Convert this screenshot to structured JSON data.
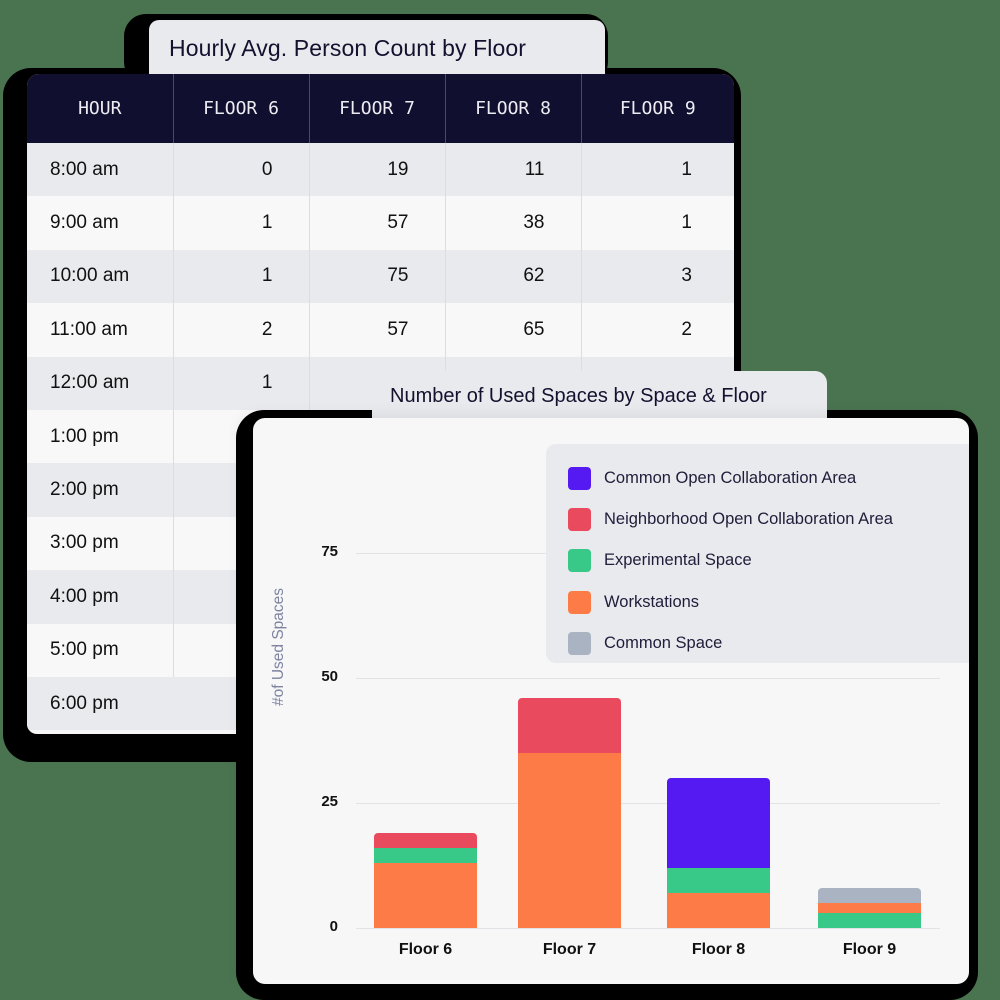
{
  "table_card": {
    "title": "Hourly Avg. Person Count by Floor",
    "columns": [
      "HOUR",
      "FLOOR 6",
      "FLOOR 7",
      "FLOOR 8",
      "FLOOR 9"
    ],
    "rows": [
      [
        "8:00 am",
        "0",
        "19",
        "11",
        "1"
      ],
      [
        "9:00 am",
        "1",
        "57",
        "38",
        "1"
      ],
      [
        "10:00 am",
        "1",
        "75",
        "62",
        "3"
      ],
      [
        "11:00 am",
        "2",
        "57",
        "65",
        "2"
      ],
      [
        "12:00 am",
        "1",
        "",
        "",
        ""
      ],
      [
        "1:00 pm",
        "",
        "",
        "",
        ""
      ],
      [
        "2:00 pm",
        "",
        "",
        "",
        ""
      ],
      [
        "3:00 pm",
        "",
        "",
        "",
        ""
      ],
      [
        "4:00 pm",
        "",
        "",
        "",
        ""
      ],
      [
        "5:00 pm",
        "",
        "",
        "",
        ""
      ],
      [
        "6:00 pm",
        "",
        "",
        "",
        ""
      ]
    ]
  },
  "chart_card": {
    "title": "Number of Used Spaces by Space & Floor",
    "legend": [
      {
        "label": "Common Open Collaboration Area",
        "color": "#5519f2"
      },
      {
        "label": "Neighborhood Open Collaboration Area",
        "color": "#ea4a5d"
      },
      {
        "label": "Experimental Space",
        "color": "#38c888"
      },
      {
        "label": "Workstations",
        "color": "#fd7b46"
      },
      {
        "label": "Common Space",
        "color": "#aab3c2"
      }
    ]
  },
  "chart_data": {
    "type": "bar",
    "stacked": true,
    "title": "Number of Used Spaces by Space & Floor",
    "xlabel": "",
    "ylabel": "#of Used Spaces",
    "ylim": [
      0,
      75
    ],
    "yticks": [
      0,
      25,
      50,
      75
    ],
    "grid": true,
    "legend_position": "top-right",
    "categories": [
      "Floor 6",
      "Floor 7",
      "Floor 8",
      "Floor 9"
    ],
    "series": [
      {
        "name": "Workstations",
        "color": "#fd7b46",
        "values": [
          13,
          35,
          7,
          2
        ]
      },
      {
        "name": "Experimental Space",
        "color": "#38c888",
        "values": [
          3,
          0,
          5,
          3
        ]
      },
      {
        "name": "Neighborhood Open Collaboration Area",
        "color": "#ea4a5d",
        "values": [
          3,
          11,
          0,
          0
        ]
      },
      {
        "name": "Common Open Collaboration Area",
        "color": "#5519f2",
        "values": [
          0,
          0,
          18,
          0
        ]
      },
      {
        "name": "Common Space",
        "color": "#aab3c2",
        "values": [
          0,
          0,
          0,
          3
        ]
      }
    ],
    "stack_order_per_category": {
      "Floor 6": [
        "Workstations",
        "Experimental Space",
        "Neighborhood Open Collaboration Area"
      ],
      "Floor 7": [
        "Workstations",
        "Neighborhood Open Collaboration Area"
      ],
      "Floor 8": [
        "Workstations",
        "Experimental Space",
        "Common Open Collaboration Area"
      ],
      "Floor 9": [
        "Experimental Space",
        "Workstations",
        "Common Space"
      ]
    }
  }
}
